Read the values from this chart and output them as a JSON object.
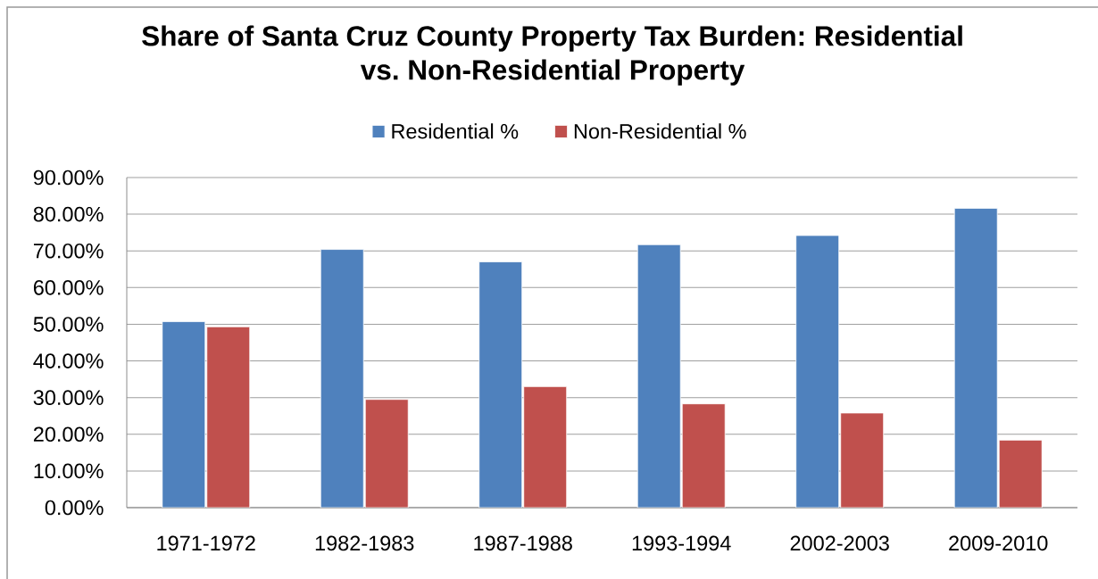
{
  "chart_data": {
    "type": "bar",
    "title": "Share of Santa Cruz County Property Tax Burden: Residential vs. Non-Residential Property",
    "categories": [
      "1971-1972",
      "1982-1983",
      "1987-1988",
      "1993-1994",
      "2002-2003",
      "2009-2010"
    ],
    "series": [
      {
        "name": "Residential %",
        "color": "#4f81bd",
        "values": [
          50.7,
          70.4,
          67.0,
          71.7,
          74.2,
          81.6
        ]
      },
      {
        "name": "Non-Residential %",
        "color": "#c0504d",
        "values": [
          49.3,
          29.5,
          33.0,
          28.3,
          25.8,
          18.4
        ]
      }
    ],
    "ylim": [
      0,
      90
    ],
    "yticks": [
      {
        "value": 0,
        "label": "0.00%"
      },
      {
        "value": 10,
        "label": "10.00%"
      },
      {
        "value": 20,
        "label": "20.00%"
      },
      {
        "value": 30,
        "label": "30.00%"
      },
      {
        "value": 40,
        "label": "40.00%"
      },
      {
        "value": 50,
        "label": "50.00%"
      },
      {
        "value": 60,
        "label": "60.00%"
      },
      {
        "value": 70,
        "label": "70.00%"
      },
      {
        "value": 80,
        "label": "80.00%"
      },
      {
        "value": 90,
        "label": "90.00%"
      }
    ],
    "grid": "y",
    "legend": "top"
  }
}
